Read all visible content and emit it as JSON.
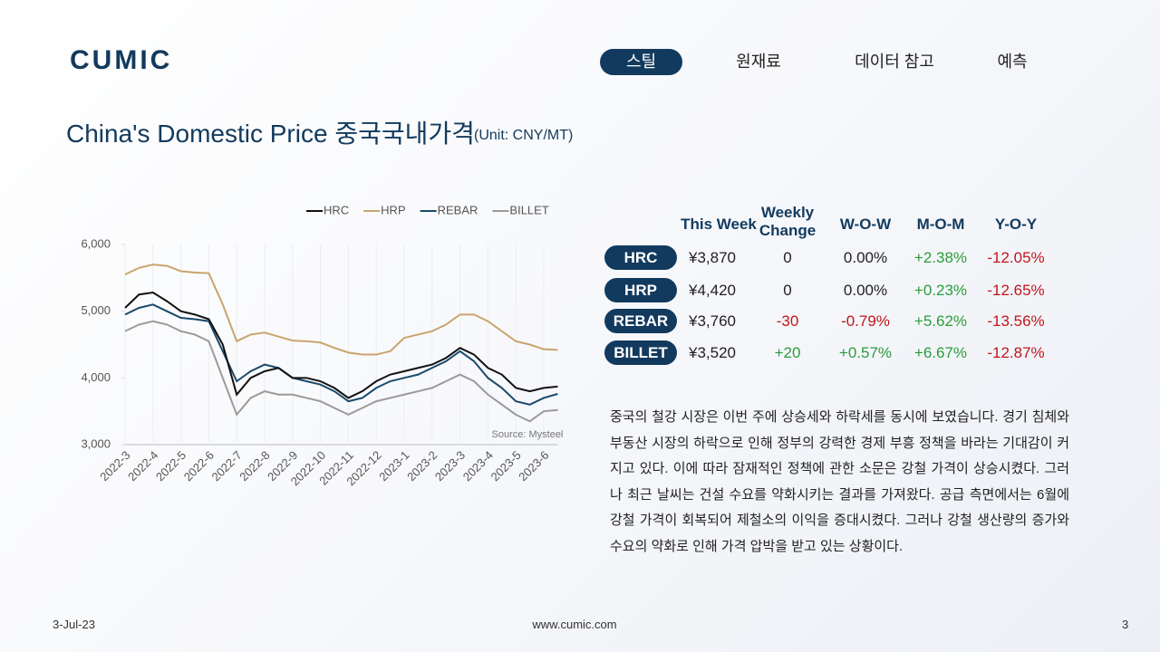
{
  "header": {
    "logo": "CUMIC",
    "nav": [
      "스틸",
      "원재료",
      "데이터 참고",
      "예측"
    ]
  },
  "title": "China's Domestic Price 중국국내가격",
  "unit": "(Unit: CNY/MT)",
  "chart_data": {
    "type": "line",
    "categories": [
      "2022-3",
      null,
      "2022-4",
      null,
      "2022-5",
      null,
      "2022-6",
      null,
      "2022-7",
      null,
      "2022-8",
      null,
      "2022-9",
      null,
      "2022-10",
      null,
      "2022-11",
      null,
      "2022-12",
      null,
      "2023-1",
      null,
      "2023-2",
      null,
      "2023-3",
      null,
      "2023-4",
      null,
      "2023-5",
      null,
      "2023-6",
      null
    ],
    "series": [
      {
        "name": "HRC",
        "color": "#111111",
        "values": [
          5050,
          5250,
          5280,
          5150,
          5000,
          4950,
          4880,
          4500,
          3750,
          4000,
          4100,
          4150,
          4000,
          4000,
          3950,
          3850,
          3700,
          3800,
          3950,
          4050,
          4100,
          4150,
          4200,
          4300,
          4450,
          4350,
          4150,
          4050,
          3850,
          3800,
          3850,
          3870
        ]
      },
      {
        "name": "HRP",
        "color": "#c9a46e",
        "values": [
          5550,
          5650,
          5700,
          5680,
          5600,
          5580,
          5570,
          5100,
          4550,
          4650,
          4680,
          4620,
          4560,
          4550,
          4530,
          4450,
          4380,
          4350,
          4350,
          4400,
          4600,
          4650,
          4700,
          4800,
          4950,
          4950,
          4850,
          4700,
          4550,
          4500,
          4430,
          4420
        ]
      },
      {
        "name": "REBAR",
        "color": "#1a4a6b",
        "values": [
          4950,
          5050,
          5100,
          5000,
          4900,
          4880,
          4850,
          4400,
          3950,
          4100,
          4200,
          4150,
          4000,
          3950,
          3900,
          3800,
          3650,
          3700,
          3850,
          3950,
          4000,
          4050,
          4150,
          4250,
          4400,
          4250,
          4000,
          3850,
          3650,
          3600,
          3700,
          3760
        ]
      },
      {
        "name": "BILLET",
        "color": "#9a9a9a",
        "values": [
          4700,
          4800,
          4850,
          4800,
          4700,
          4650,
          4550,
          4000,
          3450,
          3700,
          3800,
          3750,
          3750,
          3700,
          3650,
          3550,
          3450,
          3550,
          3650,
          3700,
          3750,
          3800,
          3850,
          3950,
          4050,
          3950,
          3750,
          3600,
          3450,
          3350,
          3500,
          3520
        ]
      }
    ],
    "ylim": [
      3000,
      6000
    ],
    "yticks": [
      {
        "value": 3000,
        "label": "3,000"
      },
      {
        "value": 4000,
        "label": "4,000"
      },
      {
        "value": 5000,
        "label": "5,000"
      },
      {
        "value": 6000,
        "label": "6,000"
      }
    ],
    "grid": true,
    "legend": "top",
    "annotation": "Source: Mysteel"
  },
  "table": {
    "headers": [
      "This Week",
      "Weekly Change",
      "W-O-W",
      "M-O-M",
      "Y-O-Y"
    ],
    "rows": [
      {
        "name": "HRC",
        "cells": [
          "¥3,870",
          "0",
          "0.00%",
          "+2.38%",
          "-12.05%"
        ]
      },
      {
        "name": "HRP",
        "cells": [
          "¥4,420",
          "0",
          "0.00%",
          "+0.23%",
          "-12.65%"
        ]
      },
      {
        "name": "REBAR",
        "cells": [
          "¥3,760",
          "-30",
          "-0.79%",
          "+5.62%",
          "-13.56%"
        ]
      },
      {
        "name": "BILLET",
        "cells": [
          "¥3,520",
          "+20",
          "+0.57%",
          "+6.67%",
          "-12.87%"
        ]
      }
    ]
  },
  "paragraph": "중국의 철강 시장은 이번 주에 상승세와 하락세를 동시에 보였습니다. 경기 침체와 부동산 시장의 하락으로 인해 정부의 강력한 경제 부흥 정책을 바라는 기대감이 커지고 있다. 이에 따라 잠재적인 정책에 관한 소문은 강철 가격이 상승시켰다. 그러나 최근  날씨는  건설 수요를 약화시키는 결과를 가져왔다. 공급 측면에서는 6월에 강철 가격이 회복되어 제철소의 이익을 증대시켰다. 그러나 강철 생산량의 증가와 수요의 약화로 인해 가격 압박을 받고 있는 상황이다.",
  "footer": {
    "date": "3-Jul-23",
    "site": "www.cumic.com",
    "page": "3"
  }
}
